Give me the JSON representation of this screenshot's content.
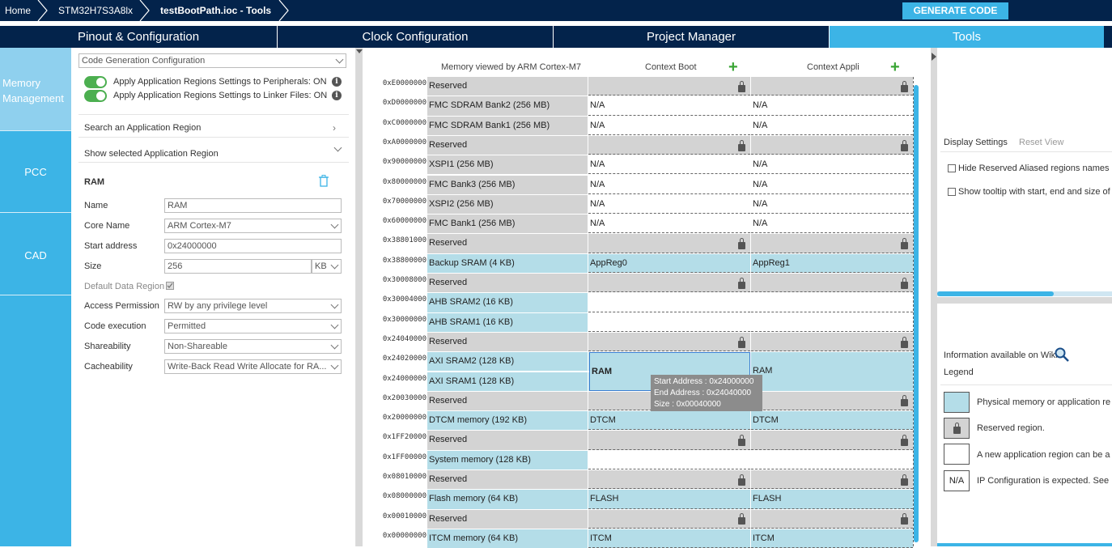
{
  "breadcrumb": {
    "home": "Home",
    "device": "STM32H7S3A8lx",
    "file": "testBootPath.ioc - Tools"
  },
  "generate_label": "GENERATE CODE",
  "tabs": [
    "Pinout & Configuration",
    "Clock Configuration",
    "Project Manager",
    "Tools"
  ],
  "nav": {
    "memory": "Memory\nManagement",
    "pcc": "PCC",
    "cad": "CAD"
  },
  "config": {
    "dropdown": "Code Generation Configuration",
    "toggle1": "Apply Application Regions Settings to Peripherals: ON",
    "toggle2": "Apply Application Regions Settings to Linker Files: ON",
    "search": "Search an Application Region",
    "show": "Show selected Application Region",
    "region_title": "RAM",
    "fields": {
      "name_label": "Name",
      "name_value": "RAM",
      "core_label": "Core Name",
      "core_value": "ARM Cortex-M7",
      "start_label": "Start address",
      "start_value": "0x24000000",
      "size_label": "Size",
      "size_value": "256",
      "size_unit": "KB",
      "default_label": "Default Data Region",
      "access_label": "Access Permission",
      "access_value": "RW by any privilege level",
      "code_label": "Code execution",
      "code_value": "Permitted",
      "share_label": "Shareability",
      "share_value": "Non-Shareable",
      "cache_label": "Cacheability",
      "cache_value": "Write-Back Read Write Allocate for RA..."
    }
  },
  "memory": {
    "col_header": "Memory viewed by ARM Cortex-M7",
    "ctx_boot": "Context Boot",
    "ctx_appli": "Context Appli",
    "addresses": [
      "0xE0000000",
      "0xD0000000",
      "0xC0000000",
      "0xA0000000",
      "0x90000000",
      "0x80000000",
      "0x70000000",
      "0x60000000",
      "0x38801000",
      "0x38800000",
      "0x30008000",
      "0x30004000",
      "0x30000000",
      "0x24040000",
      "0x24020000",
      "0x24000000",
      "0x20030000",
      "0x20000000",
      "0x1FF20000",
      "0x1FF00000",
      "0x08010000",
      "0x08000000",
      "0x00010000",
      "0x00000000"
    ],
    "rows": [
      {
        "name": "Reserved",
        "boot": "",
        "appli": "",
        "kind": "reserved"
      },
      {
        "name": "FMC SDRAM Bank2 (256 MB)",
        "boot": "N/A",
        "appli": "N/A",
        "kind": "grey"
      },
      {
        "name": "FMC SDRAM Bank1 (256 MB)",
        "boot": "N/A",
        "appli": "N/A",
        "kind": "grey"
      },
      {
        "name": "Reserved",
        "boot": "",
        "appli": "",
        "kind": "reserved"
      },
      {
        "name": "XSPI1 (256 MB)",
        "boot": "N/A",
        "appli": "N/A",
        "kind": "grey"
      },
      {
        "name": "FMC Bank3 (256 MB)",
        "boot": "N/A",
        "appli": "N/A",
        "kind": "grey"
      },
      {
        "name": "XSPI2 (256 MB)",
        "boot": "N/A",
        "appli": "N/A",
        "kind": "grey"
      },
      {
        "name": "FMC Bank1 (256 MB)",
        "boot": "N/A",
        "appli": "N/A",
        "kind": "grey"
      },
      {
        "name": "Reserved",
        "boot": "",
        "appli": "",
        "kind": "reserved"
      },
      {
        "name": "Backup SRAM (4 KB)",
        "boot": "AppReg0",
        "appli": "AppReg1",
        "kind": "blue"
      },
      {
        "name": "Reserved",
        "boot": "",
        "appli": "",
        "kind": "reserved"
      },
      {
        "name": "AHB SRAM2 (16 KB)",
        "boot": "",
        "appli": "",
        "kind": "bluew"
      },
      {
        "name": "AHB SRAM1 (16 KB)",
        "boot": "",
        "appli": "",
        "kind": "bluew"
      },
      {
        "name": "Reserved",
        "boot": "",
        "appli": "",
        "kind": "reserved"
      },
      {
        "name": "AXI SRAM2 (128 KB)",
        "boot": "",
        "appli": "",
        "kind": "axi"
      },
      {
        "name": "AXI SRAM1 (128 KB)",
        "boot": "",
        "appli": "",
        "kind": "axi"
      },
      {
        "name": "Reserved",
        "boot": "",
        "appli": "",
        "kind": "reserved"
      },
      {
        "name": "DTCM memory (192 KB)",
        "boot": "DTCM",
        "appli": "DTCM",
        "kind": "blue"
      },
      {
        "name": "Reserved",
        "boot": "",
        "appli": "",
        "kind": "reserved"
      },
      {
        "name": "System memory (128 KB)",
        "boot": "",
        "appli": "",
        "kind": "bluew"
      },
      {
        "name": "Reserved",
        "boot": "",
        "appli": "",
        "kind": "reserved"
      },
      {
        "name": "Flash memory (64 KB)",
        "boot": "FLASH",
        "appli": "FLASH",
        "kind": "blue"
      },
      {
        "name": "Reserved",
        "boot": "",
        "appli": "",
        "kind": "reserved"
      },
      {
        "name": "ITCM memory (64 KB)",
        "boot": "ITCM",
        "appli": "ITCM",
        "kind": "blue"
      }
    ],
    "ram_boot": "RAM",
    "ram_appli": "RAM",
    "tooltip": {
      "start": "Start Address : 0x24000000",
      "end": "End Address : 0x24040000",
      "size": "Size : 0x00040000"
    }
  },
  "right": {
    "display": "Display Settings",
    "reset": "Reset View",
    "opt1": "Hide Reserved Aliased regions names",
    "opt2": "Show tooltip with start, end and size of",
    "wiki": "Information available on Wiki",
    "legend": "Legend",
    "leg1": "Physical memory or application re",
    "leg2": "Reserved region.",
    "leg3": "A new application region can be a",
    "leg4": "IP Configuration is expected. See",
    "na": "N/A"
  }
}
